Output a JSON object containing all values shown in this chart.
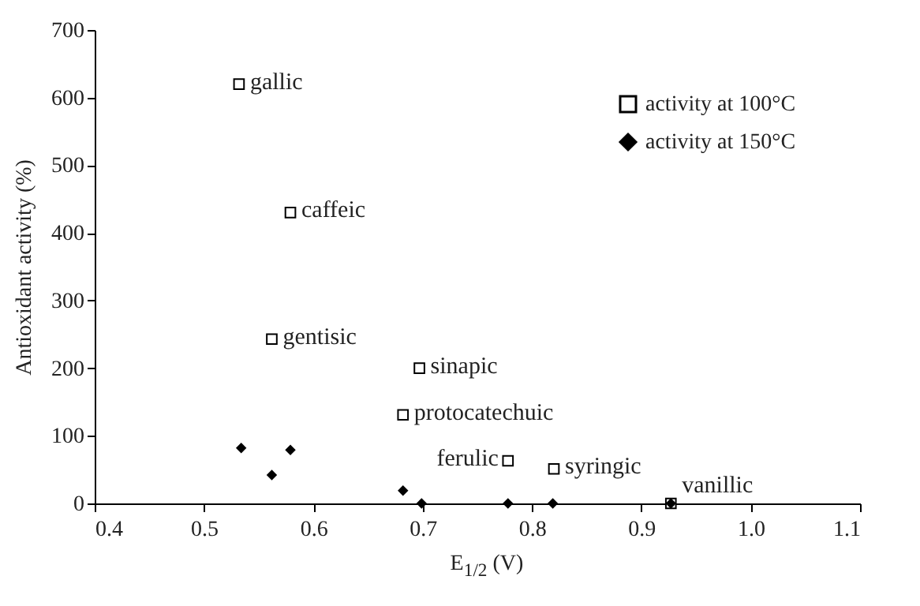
{
  "chart_data": {
    "type": "scatter",
    "xlabel": "E$_{1/2}$ (V)",
    "ylabel": "Antioxidant activity (%)",
    "xlim": [
      0.4,
      1.1
    ],
    "xticks": [
      0.4,
      0.5,
      0.6,
      0.7,
      0.8,
      0.9,
      {
        "value": 1.0,
        "label": "1.0"
      },
      1.1
    ],
    "ylim": [
      0,
      700
    ],
    "yticks": [
      0,
      100,
      200,
      300,
      400,
      500,
      600,
      700
    ],
    "grid": false,
    "legend": "top right",
    "series": [
      {
        "name": "activity at 100°C",
        "color": "#000000",
        "marker": "square",
        "x": [
          0.532,
          0.579,
          0.562,
          0.697,
          0.682,
          0.778,
          0.82,
          0.927
        ],
        "values": [
          620,
          430,
          243,
          200,
          131,
          63,
          51,
          0
        ]
      },
      {
        "name": "activity at 150°C",
        "color": "#000000",
        "marker": "diamond",
        "x": [
          0.534,
          0.562,
          0.579,
          0.682,
          0.699,
          0.778,
          0.819,
          0.927
        ],
        "values": [
          82,
          42,
          79,
          19,
          0,
          0,
          0,
          0
        ]
      }
    ],
    "annotations": [
      {
        "text": "gallic",
        "x": 0.532,
        "y": 620
      },
      {
        "text": "caffeic",
        "x": 0.579,
        "y": 430
      },
      {
        "text": "gentisic",
        "x": 0.562,
        "y": 243
      },
      {
        "text": "sinapic",
        "x": 0.697,
        "y": 200
      },
      {
        "text": "protocatechuic",
        "x": 0.682,
        "y": 131
      },
      {
        "text": "ferulic",
        "x": 0.778,
        "y": 63
      },
      {
        "text": "syringic",
        "x": 0.82,
        "y": 51
      },
      {
        "text": "vanillic",
        "x": 0.927,
        "y": 0
      }
    ]
  }
}
